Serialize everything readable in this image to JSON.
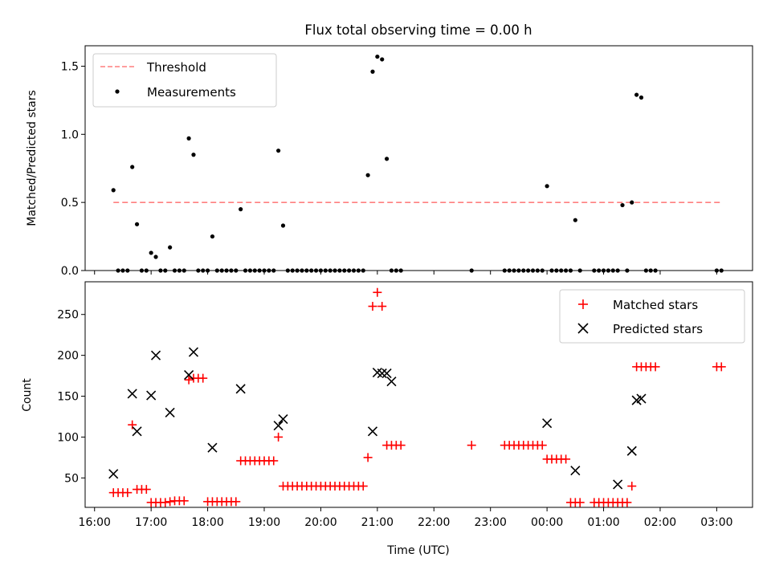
{
  "title": "Flux total observing time = 0.00 h",
  "colors": {
    "threshold": "#ff7f7f",
    "measurement": "#000000",
    "matched": "#ff0000",
    "predicted": "#000000"
  },
  "chart_data": [
    {
      "type": "scatter",
      "ylabel": "Matched/Predicted stars",
      "ylim": [
        0,
        1.65
      ],
      "xlim": [
        "15:50",
        "03:38"
      ],
      "yticks": [
        "0.0",
        "0.5",
        "1.0",
        "1.5"
      ],
      "legend_position": "top-left",
      "legend": [
        "Threshold",
        "Measurements"
      ],
      "threshold": {
        "value": 0.5,
        "x_start": "16:20",
        "x_end": "03:05"
      },
      "series": [
        {
          "type": "scatter",
          "x": [
            "16:20",
            "16:25",
            "16:30",
            "16:35",
            "16:40",
            "16:45",
            "16:50",
            "16:55",
            "17:00",
            "17:05",
            "17:10",
            "17:15",
            "17:20",
            "17:25",
            "17:30",
            "17:35",
            "17:40",
            "17:45",
            "17:50",
            "17:55",
            "18:00",
            "18:05",
            "18:10",
            "18:15",
            "18:20",
            "18:25",
            "18:30",
            "18:35",
            "18:40",
            "18:45",
            "18:50",
            "18:55",
            "19:00",
            "19:05",
            "19:10",
            "19:15",
            "19:20",
            "19:25",
            "19:30",
            "19:35",
            "19:40",
            "19:45",
            "19:50",
            "19:55",
            "20:00",
            "20:05",
            "20:10",
            "20:15",
            "20:20",
            "20:25",
            "20:30",
            "20:35",
            "20:40",
            "20:45",
            "20:50",
            "20:55",
            "21:00",
            "21:05",
            "21:10",
            "21:15",
            "21:20",
            "21:25",
            "22:40",
            "23:15",
            "23:20",
            "23:25",
            "23:30",
            "23:35",
            "23:40",
            "23:45",
            "23:50",
            "23:55",
            "00:00",
            "00:05",
            "00:10",
            "00:15",
            "00:20",
            "00:25",
            "00:30",
            "00:35",
            "00:50",
            "00:55",
            "01:00",
            "01:05",
            "01:10",
            "01:15",
            "01:20",
            "01:25",
            "01:30",
            "01:35",
            "01:40",
            "01:45",
            "01:50",
            "01:55",
            "03:00",
            "03:05"
          ],
          "y": [
            0.59,
            0,
            0,
            0,
            0.76,
            0.34,
            0,
            0,
            0.13,
            0.1,
            0,
            0,
            0.17,
            0,
            0,
            0,
            0.97,
            0.85,
            0,
            0,
            0,
            0.25,
            0,
            0,
            0,
            0,
            0,
            0.45,
            0,
            0,
            0,
            0,
            0,
            0,
            0,
            0.88,
            0.33,
            0,
            0,
            0,
            0,
            0,
            0,
            0,
            0,
            0,
            0,
            0,
            0,
            0,
            0,
            0,
            0,
            0,
            0.7,
            1.46,
            1.57,
            1.55,
            0.82,
            0,
            0,
            0,
            0,
            0,
            0,
            0,
            0,
            0,
            0,
            0,
            0,
            0,
            0.62,
            0,
            0,
            0,
            0,
            0,
            0.37,
            0,
            0,
            0,
            0,
            0,
            0,
            0,
            0.48,
            0,
            0.5,
            1.29,
            1.27,
            0,
            0,
            0,
            0,
            0
          ],
          "name": "Measurements"
        }
      ]
    },
    {
      "type": "scatter",
      "xlabel": "Time (UTC)",
      "ylabel": "Count",
      "ylim": [
        14,
        290
      ],
      "xlim": [
        "15:50",
        "03:38"
      ],
      "yticks": [
        "50",
        "100",
        "150",
        "200",
        "250"
      ],
      "xticks": [
        "16:00",
        "17:00",
        "18:00",
        "19:00",
        "20:00",
        "21:00",
        "22:00",
        "23:00",
        "00:00",
        "01:00",
        "02:00",
        "03:00"
      ],
      "legend_position": "top-right",
      "legend": [
        "Matched stars",
        "Predicted stars"
      ],
      "series": [
        {
          "type": "scatter",
          "name": "Matched stars",
          "x": [
            "16:20",
            "16:25",
            "16:30",
            "16:35",
            "16:40",
            "16:45",
            "16:50",
            "16:55",
            "17:00",
            "17:05",
            "17:10",
            "17:15",
            "17:20",
            "17:25",
            "17:30",
            "17:35",
            "17:40",
            "17:45",
            "17:50",
            "17:55",
            "18:00",
            "18:05",
            "18:10",
            "18:15",
            "18:20",
            "18:25",
            "18:30",
            "18:35",
            "18:40",
            "18:45",
            "18:50",
            "18:55",
            "19:00",
            "19:05",
            "19:10",
            "19:15",
            "19:20",
            "19:25",
            "19:30",
            "19:35",
            "19:40",
            "19:45",
            "19:50",
            "19:55",
            "20:00",
            "20:05",
            "20:10",
            "20:15",
            "20:20",
            "20:25",
            "20:30",
            "20:35",
            "20:40",
            "20:45",
            "20:50",
            "20:55",
            "21:00",
            "21:05",
            "21:10",
            "21:15",
            "21:20",
            "21:25",
            "22:40",
            "23:15",
            "23:20",
            "23:25",
            "23:30",
            "23:35",
            "23:40",
            "23:45",
            "23:50",
            "23:55",
            "00:00",
            "00:05",
            "00:10",
            "00:15",
            "00:20",
            "00:25",
            "00:30",
            "00:35",
            "00:50",
            "00:55",
            "01:00",
            "01:05",
            "01:10",
            "01:15",
            "01:20",
            "01:25",
            "01:30",
            "01:35",
            "01:40",
            "01:45",
            "01:50",
            "01:55",
            "03:00",
            "03:05"
          ],
          "y": [
            32,
            32,
            32,
            32,
            115,
            36,
            36,
            36,
            20,
            20,
            20,
            20,
            21,
            22,
            22,
            22,
            170,
            172,
            172,
            172,
            21,
            21,
            21,
            21,
            21,
            21,
            21,
            71,
            71,
            71,
            71,
            71,
            71,
            71,
            71,
            100,
            40,
            40,
            40,
            40,
            40,
            40,
            40,
            40,
            40,
            40,
            40,
            40,
            40,
            40,
            40,
            40,
            40,
            40,
            75,
            260,
            277,
            260,
            90,
            90,
            90,
            90,
            90,
            90,
            90,
            90,
            90,
            90,
            90,
            90,
            90,
            90,
            73,
            73,
            73,
            73,
            73,
            20,
            20,
            20,
            20,
            20,
            20,
            20,
            20,
            20,
            20,
            20,
            40,
            186,
            186,
            186,
            186,
            186,
            186,
            186
          ]
        },
        {
          "type": "scatter",
          "name": "Predicted stars",
          "x": [
            "16:20",
            "16:40",
            "16:45",
            "17:00",
            "17:05",
            "17:20",
            "17:40",
            "17:45",
            "18:05",
            "18:35",
            "19:15",
            "19:20",
            "20:55",
            "21:00",
            "21:05",
            "21:10",
            "21:15",
            "00:00",
            "00:30",
            "01:15",
            "01:30",
            "01:35",
            "01:40"
          ],
          "y": [
            55,
            153,
            107,
            151,
            200,
            130,
            176,
            204,
            87,
            159,
            114,
            122,
            107,
            179,
            178,
            178,
            168,
            117,
            59,
            42,
            83,
            145,
            147
          ]
        }
      ]
    }
  ]
}
